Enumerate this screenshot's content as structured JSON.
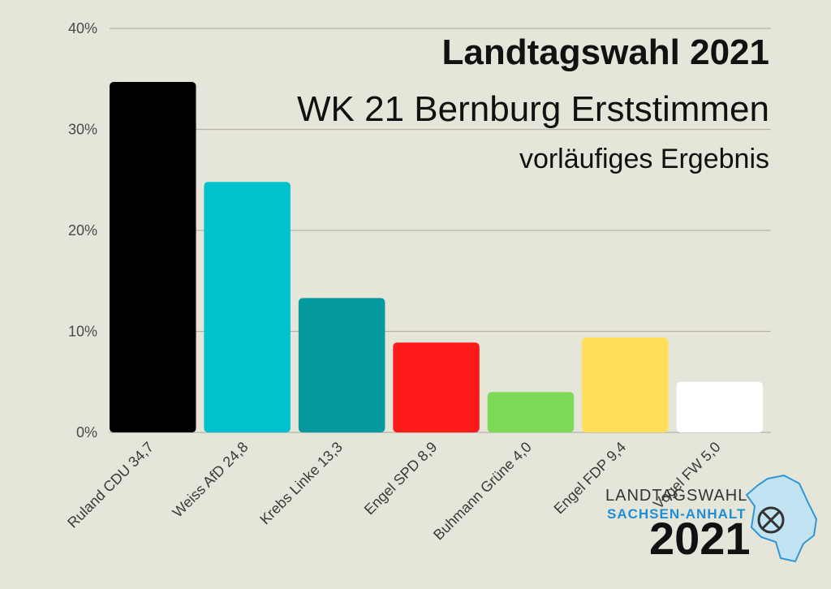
{
  "chart_data": {
    "type": "bar",
    "title": "Landtagswahl 2021",
    "subtitle": "WK 21 Bernburg Erststimmen",
    "subtitle2": "vorläufiges Ergebnis",
    "categories": [
      "Ruland CDU 34,7",
      "Weiss AfD 24,8",
      "Krebs Linke 13,3",
      "Engel SPD 8,9",
      "Buhmann Grüne 4,0",
      "Engel FDP 9,4",
      "Vogel FW 5,0"
    ],
    "values": [
      34.7,
      24.8,
      13.3,
      8.9,
      4.0,
      9.4,
      5.0
    ],
    "colors": [
      "#000000",
      "#00c2cc",
      "#04999e",
      "#ff1a1a",
      "#7ed957",
      "#ffde59",
      "#ffffff"
    ],
    "yticks": [
      "0%",
      "10%",
      "20%",
      "30%",
      "40%"
    ],
    "ytick_values": [
      0,
      10,
      20,
      30,
      40
    ],
    "ylim": [
      0,
      40
    ],
    "xlabel": "",
    "ylabel": "",
    "grid": true
  },
  "logo": {
    "line1": "LANDTAGSWAHL",
    "line2": "SACHSEN-ANHALT",
    "year": "2021",
    "map_color": "#bfe3f5",
    "accent": "#1e8ed6"
  }
}
